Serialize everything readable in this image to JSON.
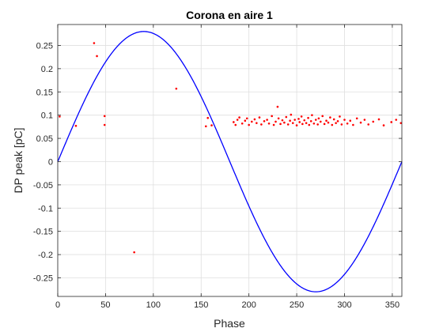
{
  "chart_data": {
    "type": "scatter",
    "title": "Corona en aire 1",
    "xlabel": "Phase",
    "ylabel": "DP peak [pC]",
    "xlim": [
      0,
      360
    ],
    "ylim": [
      -0.29,
      0.295
    ],
    "xticks": [
      0,
      50,
      100,
      150,
      200,
      250,
      300,
      350
    ],
    "yticks": [
      -0.25,
      -0.2,
      -0.15,
      -0.1,
      -0.05,
      0,
      0.05,
      0.1,
      0.15,
      0.2,
      0.25
    ],
    "ytick_labels": [
      "-0.25",
      "-0.2",
      "-0.15",
      "-0.1",
      "-0.05",
      "0",
      "0.05",
      "0.1",
      "0.15",
      "0.2",
      "0.25"
    ],
    "grid": true,
    "legend": "none",
    "reference_curve": {
      "type": "sine",
      "amplitude": 0.28,
      "period_deg": 360,
      "color": "#0000ff"
    },
    "scatter_color": "#ff0000",
    "scatter_points": [
      [
        2,
        0.097
      ],
      [
        19,
        0.077
      ],
      [
        38,
        0.255
      ],
      [
        41,
        0.227
      ],
      [
        49,
        0.098
      ],
      [
        49,
        0.079
      ],
      [
        80,
        -0.195
      ],
      [
        124,
        0.157
      ],
      [
        155,
        0.076
      ],
      [
        157,
        0.094
      ],
      [
        161,
        0.078
      ],
      [
        184,
        0.085
      ],
      [
        186,
        0.079
      ],
      [
        188,
        0.09
      ],
      [
        190,
        0.095
      ],
      [
        193,
        0.082
      ],
      [
        196,
        0.088
      ],
      [
        198,
        0.093
      ],
      [
        200,
        0.079
      ],
      [
        203,
        0.086
      ],
      [
        206,
        0.091
      ],
      [
        208,
        0.083
      ],
      [
        211,
        0.095
      ],
      [
        213,
        0.08
      ],
      [
        216,
        0.087
      ],
      [
        219,
        0.09
      ],
      [
        221,
        0.082
      ],
      [
        224,
        0.098
      ],
      [
        226,
        0.079
      ],
      [
        228,
        0.086
      ],
      [
        230,
        0.118
      ],
      [
        231,
        0.093
      ],
      [
        233,
        0.081
      ],
      [
        235,
        0.089
      ],
      [
        237,
        0.084
      ],
      [
        239,
        0.096
      ],
      [
        241,
        0.08
      ],
      [
        243,
        0.088
      ],
      [
        244,
        0.101
      ],
      [
        246,
        0.083
      ],
      [
        248,
        0.09
      ],
      [
        250,
        0.078
      ],
      [
        252,
        0.092
      ],
      [
        253,
        0.085
      ],
      [
        255,
        0.097
      ],
      [
        256,
        0.081
      ],
      [
        258,
        0.089
      ],
      [
        260,
        0.083
      ],
      [
        262,
        0.094
      ],
      [
        263,
        0.079
      ],
      [
        265,
        0.087
      ],
      [
        266,
        0.1
      ],
      [
        268,
        0.082
      ],
      [
        270,
        0.09
      ],
      [
        272,
        0.08
      ],
      [
        273,
        0.093
      ],
      [
        275,
        0.086
      ],
      [
        277,
        0.098
      ],
      [
        279,
        0.081
      ],
      [
        281,
        0.088
      ],
      [
        283,
        0.084
      ],
      [
        285,
        0.095
      ],
      [
        287,
        0.079
      ],
      [
        289,
        0.091
      ],
      [
        291,
        0.083
      ],
      [
        293,
        0.087
      ],
      [
        295,
        0.097
      ],
      [
        297,
        0.08
      ],
      [
        300,
        0.09
      ],
      [
        303,
        0.082
      ],
      [
        306,
        0.088
      ],
      [
        309,
        0.079
      ],
      [
        313,
        0.093
      ],
      [
        317,
        0.084
      ],
      [
        321,
        0.09
      ],
      [
        325,
        0.08
      ],
      [
        330,
        0.086
      ],
      [
        336,
        0.091
      ],
      [
        341,
        0.078
      ],
      [
        349,
        0.085
      ],
      [
        354,
        0.09
      ],
      [
        359,
        0.083
      ]
    ]
  }
}
